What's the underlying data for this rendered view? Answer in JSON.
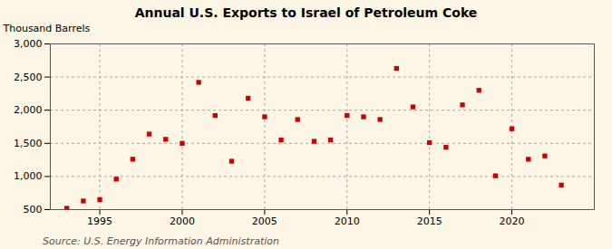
{
  "chart_data": {
    "type": "scatter",
    "title": "Annual U.S. Exports to Israel of Petroleum Coke",
    "ylabel": "Thousand Barrels",
    "source": "Source: U.S. Energy Information Administration",
    "x": [
      1993,
      1994,
      1995,
      1996,
      1997,
      1998,
      1999,
      2000,
      2001,
      2002,
      2003,
      2004,
      2005,
      2006,
      2007,
      2008,
      2009,
      2010,
      2011,
      2012,
      2013,
      2014,
      2015,
      2016,
      2017,
      2018,
      2019,
      2020,
      2021,
      2022,
      2023
    ],
    "values": [
      520,
      630,
      650,
      960,
      1260,
      1640,
      1560,
      1500,
      2420,
      1920,
      1230,
      2180,
      1900,
      1550,
      1860,
      1530,
      1550,
      1920,
      1900,
      1860,
      2630,
      2050,
      1510,
      1440,
      2080,
      2300,
      1010,
      1720,
      1260,
      1310,
      870
    ],
    "color": "#cc0000",
    "marker": "square",
    "xlim": [
      1992,
      2025
    ],
    "xticks": [
      1995,
      2000,
      2005,
      2010,
      2015,
      2020
    ],
    "ylim": [
      500,
      3000
    ],
    "yticks": [
      500,
      {
        "value": 1000,
        "label": "1,000"
      },
      {
        "value": 1500,
        "label": "1,500"
      },
      {
        "value": 2000,
        "label": "2,000"
      },
      {
        "value": 2500,
        "label": "2,500"
      },
      {
        "value": 3000,
        "label": "3,000"
      }
    ],
    "grid": true
  }
}
